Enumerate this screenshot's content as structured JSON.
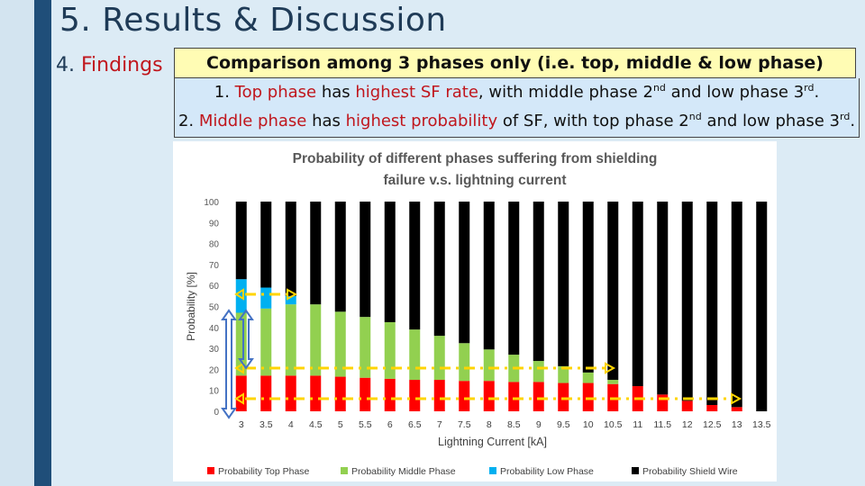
{
  "slide": {
    "title": "5. Results & Discussion",
    "section_num": "4.",
    "section_kw": "Findings",
    "box_heading": "Comparison among 3 phases only (i.e. top, middle & low phase)",
    "f1": {
      "a": "1. ",
      "b": "Top phase",
      "c": " has ",
      "d": "highest SF rate",
      "e": ", with middle phase 2",
      "f": "nd",
      "g": " and low phase 3",
      "h": "rd",
      "i": "."
    },
    "f2": {
      "a": "2. ",
      "b": "Middle phase",
      "c": " has ",
      "d": "highest probability",
      "e": " of SF, with top phase 2",
      "f": "nd",
      "g": " and low phase 3",
      "h": "rd",
      "i": "."
    }
  },
  "colors": {
    "top": "#ff0000",
    "middle": "#92d050",
    "low": "#00b0f0",
    "shield": "#000000",
    "annotation": "#ffd400"
  },
  "chart_data": {
    "type": "bar",
    "stacked": true,
    "title_lines": [
      "Probability of different phases suffering from shielding",
      "failure v.s. lightning current"
    ],
    "xlabel": "Lightning Current [kA]",
    "ylabel": "Probability [%]",
    "ylim": [
      0,
      100
    ],
    "yticks": [
      "0",
      "10",
      "20",
      "30",
      "40",
      "50",
      "60",
      "70",
      "80",
      "90",
      "100"
    ],
    "categories": [
      "3",
      "3.5",
      "4",
      "4.5",
      "5",
      "5.5",
      "6",
      "6.5",
      "7",
      "7.5",
      "8",
      "8.5",
      "9",
      "9.5",
      "10",
      "10.5",
      "11",
      "11.5",
      "12",
      "12.5",
      "13",
      "13.5"
    ],
    "legend_position": "bottom",
    "series": [
      {
        "name": "Probability Top Phase",
        "color": "#ff0000",
        "values": [
          17,
          17,
          17,
          17,
          16.5,
          16,
          15.5,
          15,
          15,
          14.5,
          14.5,
          14,
          14,
          13.5,
          13.5,
          13,
          12,
          8,
          5,
          3,
          2,
          0
        ]
      },
      {
        "name": "Probability Middle Phase",
        "color": "#92d050",
        "values": [
          30,
          32,
          34,
          34,
          31,
          29,
          27,
          24,
          21,
          18,
          15,
          13,
          10,
          8,
          5,
          2,
          0,
          0,
          0,
          0,
          0,
          0
        ]
      },
      {
        "name": "Probability Low Phase",
        "color": "#00b0f0",
        "values": [
          16,
          10,
          4,
          0,
          0,
          0,
          0,
          0,
          0,
          0,
          0,
          0,
          0,
          0,
          0,
          0,
          0,
          0,
          0,
          0,
          0,
          0
        ]
      },
      {
        "name": "Probability Shield Wire",
        "color": "#000000",
        "values": [
          37,
          41,
          45,
          49,
          52.5,
          55,
          57.5,
          61,
          64,
          67.5,
          70.5,
          73,
          76,
          78.5,
          81.5,
          85,
          88,
          92,
          95,
          97,
          98,
          100
        ]
      }
    ]
  }
}
